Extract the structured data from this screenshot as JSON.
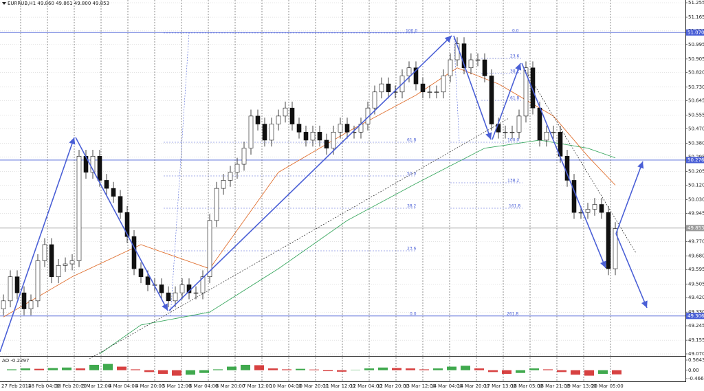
{
  "chart_data": {
    "type": "candlestick",
    "title": "EURRUB,H1 49.860 49.861 49.800 49.853",
    "open": [
      49.35,
      49.4,
      49.55,
      49.45,
      49.35,
      49.4,
      49.65,
      49.75,
      49.55,
      49.62,
      49.63,
      49.65,
      50.3,
      50.2,
      50.3,
      50.15,
      50.1,
      50.05,
      49.95,
      49.8,
      49.6,
      49.55,
      49.5,
      49.5,
      49.45,
      49.4,
      49.45,
      49.5,
      49.45,
      49.45,
      49.55,
      49.9,
      50.1,
      50.15,
      50.2,
      50.25,
      50.35,
      50.55,
      50.5,
      50.4,
      50.5,
      50.55,
      50.6,
      50.5,
      50.45,
      50.4,
      50.45,
      50.4,
      50.35,
      50.45,
      50.5,
      50.45,
      50.45,
      50.5,
      50.6,
      50.7,
      50.75,
      50.7,
      50.7,
      50.8,
      50.85,
      50.75,
      50.7,
      50.7,
      50.7,
      50.8,
      50.9,
      51.0,
      50.85,
      50.9,
      50.9,
      50.8,
      50.5,
      50.45,
      50.45,
      50.45,
      50.55,
      50.85,
      50.6,
      50.4,
      50.45,
      50.45,
      50.3,
      50.15,
      49.95,
      49.95,
      49.97,
      50.0,
      49.95,
      49.6
    ],
    "high": [
      49.44,
      49.59,
      49.59,
      49.49,
      49.44,
      49.69,
      49.79,
      49.79,
      49.66,
      49.67,
      49.69,
      50.34,
      50.34,
      50.34,
      50.34,
      50.19,
      50.14,
      50.09,
      49.99,
      49.84,
      49.64,
      49.59,
      49.54,
      49.54,
      49.49,
      49.49,
      49.54,
      49.54,
      49.49,
      49.59,
      49.94,
      50.14,
      50.19,
      50.24,
      50.29,
      50.39,
      50.59,
      50.59,
      50.54,
      50.54,
      50.59,
      50.64,
      50.64,
      50.54,
      50.49,
      50.49,
      50.49,
      50.44,
      50.49,
      50.54,
      50.54,
      50.49,
      50.54,
      50.64,
      50.74,
      50.79,
      50.79,
      50.74,
      50.84,
      50.89,
      50.89,
      50.79,
      50.74,
      50.74,
      50.84,
      50.94,
      51.04,
      51.04,
      50.94,
      50.94,
      50.94,
      50.84,
      50.54,
      50.49,
      50.49,
      50.59,
      50.89,
      50.89,
      50.64,
      50.49,
      50.49,
      50.49,
      50.34,
      50.19,
      49.99,
      50.01,
      50.04,
      50.04,
      49.99,
      49.89
    ],
    "low": [
      49.31,
      49.36,
      49.41,
      49.31,
      49.31,
      49.36,
      49.61,
      49.51,
      49.51,
      49.58,
      49.59,
      49.61,
      50.16,
      50.16,
      50.11,
      50.06,
      50.01,
      49.91,
      49.76,
      49.56,
      49.51,
      49.46,
      49.46,
      49.41,
      49.36,
      49.36,
      49.41,
      49.41,
      49.41,
      49.41,
      49.51,
      49.86,
      50.06,
      50.11,
      50.16,
      50.21,
      50.31,
      50.46,
      50.36,
      50.36,
      50.46,
      50.51,
      50.46,
      50.41,
      50.36,
      50.36,
      50.36,
      50.31,
      50.31,
      50.41,
      50.41,
      50.41,
      50.41,
      50.46,
      50.56,
      50.66,
      50.66,
      50.66,
      50.66,
      50.76,
      50.71,
      50.66,
      50.66,
      50.66,
      50.66,
      50.76,
      50.86,
      50.81,
      50.81,
      50.86,
      50.76,
      50.46,
      50.41,
      50.41,
      50.41,
      50.41,
      50.51,
      50.56,
      50.36,
      50.36,
      50.41,
      50.26,
      50.11,
      49.91,
      49.91,
      49.91,
      49.93,
      49.91,
      49.56,
      49.56
    ],
    "close": [
      49.4,
      49.55,
      49.45,
      49.35,
      49.4,
      49.65,
      49.75,
      49.55,
      49.62,
      49.63,
      49.65,
      50.3,
      50.2,
      50.3,
      50.15,
      50.1,
      50.05,
      49.95,
      49.8,
      49.6,
      49.55,
      49.5,
      49.5,
      49.45,
      49.4,
      49.45,
      49.5,
      49.45,
      49.45,
      49.55,
      49.9,
      50.1,
      50.15,
      50.2,
      50.25,
      50.35,
      50.55,
      50.5,
      50.4,
      50.5,
      50.55,
      50.6,
      50.5,
      50.45,
      50.4,
      50.45,
      50.4,
      50.35,
      50.45,
      50.5,
      50.45,
      50.45,
      50.5,
      50.6,
      50.7,
      50.75,
      50.7,
      50.7,
      50.8,
      50.85,
      50.75,
      50.7,
      50.7,
      50.7,
      50.8,
      50.9,
      51.0,
      50.85,
      50.9,
      50.9,
      50.8,
      50.5,
      50.45,
      50.45,
      50.45,
      50.55,
      50.85,
      50.6,
      50.4,
      50.45,
      50.45,
      50.3,
      50.15,
      49.95,
      49.95,
      49.97,
      50.0,
      49.95,
      49.6,
      49.85
    ],
    "overlays": [
      {
        "color": "#3aa860",
        "x": [
          14,
          20,
          30,
          40,
          50,
          60,
          70,
          78,
          85,
          89
        ],
        "values": [
          49.07,
          49.25,
          49.33,
          49.6,
          49.9,
          50.13,
          50.35,
          50.4,
          50.35,
          50.29
        ]
      },
      {
        "color": "#e07030",
        "x": [
          0,
          10,
          20,
          30,
          40,
          50,
          60,
          66,
          72,
          80,
          85,
          89
        ],
        "values": [
          49.3,
          49.55,
          49.75,
          49.6,
          50.2,
          50.45,
          50.68,
          50.85,
          50.75,
          50.55,
          50.3,
          50.12
        ]
      }
    ],
    "ylim": [
      49.07,
      51.255
    ],
    "yticks": [
      51.255,
      51.165,
      {
        "value": 51.08,
        "label": "51.080"
      },
      50.995,
      50.905,
      {
        "value": 50.82,
        "label": "50.820"
      },
      {
        "value": 50.73,
        "label": "50.730"
      },
      50.645,
      50.555,
      {
        "value": 50.47,
        "label": "50.470"
      },
      {
        "value": 50.38,
        "label": "50.380"
      },
      50.295,
      50.205,
      {
        "value": 50.12,
        "label": "50.120"
      },
      {
        "value": 50.03,
        "label": "50.030"
      },
      49.945,
      {
        "value": 49.77,
        "label": "49.770"
      },
      {
        "value": 49.68,
        "label": "49.680"
      },
      49.595,
      49.505,
      {
        "value": 49.42,
        "label": "49.420"
      },
      {
        "value": 49.33,
        "label": "49.330"
      },
      49.245,
      49.155,
      {
        "value": 49.07,
        "label": "49.070"
      }
    ],
    "grid": true,
    "levels": [
      {
        "value": 51.07,
        "label": "51.070",
        "color": "#4a5fd6"
      },
      {
        "value": 50.276,
        "label": "50.276",
        "color": "#4a5fd6"
      },
      {
        "value": 49.306,
        "label": "49.306",
        "color": "#4a5fd6"
      },
      {
        "value": 49.853,
        "label": "49.853",
        "color": "#9a9a9a"
      }
    ],
    "xlabels": [
      "27 Feb 2014",
      "28 Feb 04:00",
      "28 Feb 20:00",
      "3 Mar 12:00",
      "4 Mar 04:00",
      "4 Mar 20:00",
      "5 Mar 12:00",
      "6 Mar 04:00",
      "6 Mar 20:00",
      "7 Mar 12:00",
      "10 Mar 04:00",
      "10 Mar 20:00",
      "11 Mar 12:00",
      "12 Mar 04:00",
      "12 Mar 20:00",
      "13 Mar 12:00",
      "14 Mar 04:00",
      "14 Mar 20:00",
      "17 Mar 13:00",
      "18 Mar 05:00",
      "18 Mar 21:00",
      "19 Mar 13:00",
      "20 Mar 05:00"
    ],
    "annotations": [
      "100.0",
      "0.0",
      "61.8",
      "50.0",
      "38.2",
      "23.6",
      "0.0",
      "261.8",
      "161.8",
      "138.2",
      "100.0",
      "61.8",
      "38.2",
      "23.6"
    ],
    "indicator": {
      "label": "AO -0.2297",
      "values": [
        0.05,
        0.1,
        0.08,
        0.12,
        0.15,
        0.1,
        0.3,
        0.35,
        0.2,
        0.05,
        -0.1,
        -0.2,
        -0.3,
        -0.25,
        -0.15,
        0.05,
        0.2,
        0.3,
        0.28,
        0.1,
        0.05,
        0.08,
        0.04,
        -0.05,
        -0.08,
        0.02,
        0.1,
        0.15,
        0.12,
        0.1,
        0.05,
        0.1,
        0.2,
        0.25,
        0.1,
        -0.1,
        -0.2,
        -0.15,
        0.1,
        0.05,
        -0.1,
        -0.25,
        -0.3,
        -0.2,
        -0.23
      ],
      "ylim": [
        -0.4668,
        0.5643
      ],
      "yticks": [
        0.5643,
        {
          "value": 0,
          "label": "0.00"
        },
        -0.4668
      ],
      "up_color": "#1f9a2f",
      "down_color": "#d02020"
    }
  }
}
